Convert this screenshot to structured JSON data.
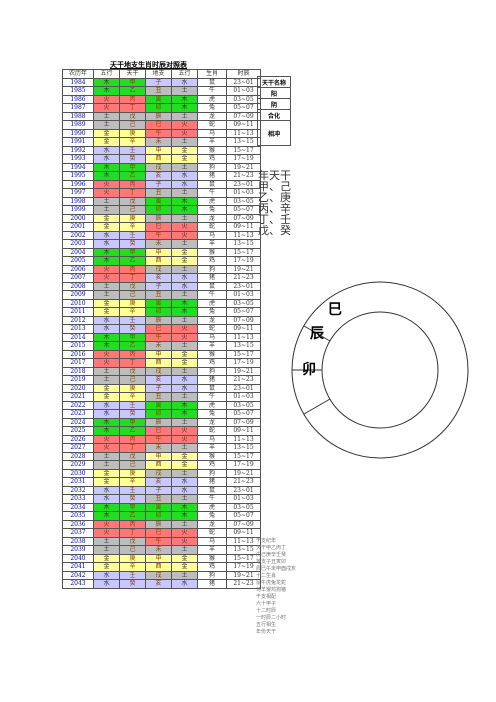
{
  "title": "天干地支生肖时辰对照表",
  "table": {
    "header": [
      "农历年",
      "五行",
      "天干",
      "地支",
      "五行",
      "生肖",
      "时辰"
    ],
    "rows": [
      [
        "1984",
        "木",
        "甲",
        "子",
        "水",
        "鼠",
        "23~01"
      ],
      [
        "1985",
        "木",
        "乙",
        "丑",
        "土",
        "牛",
        "01~03"
      ],
      [
        "1986",
        "火",
        "丙",
        "寅",
        "木",
        "虎",
        "03~05"
      ],
      [
        "1987",
        "火",
        "丁",
        "卯",
        "木",
        "兔",
        "05~07"
      ],
      [
        "1988",
        "土",
        "戊",
        "辰",
        "土",
        "龙",
        "07~09"
      ],
      [
        "1989",
        "土",
        "己",
        "巳",
        "火",
        "蛇",
        "09~11"
      ],
      [
        "1990",
        "金",
        "庚",
        "午",
        "火",
        "马",
        "11~13"
      ],
      [
        "1991",
        "金",
        "辛",
        "未",
        "土",
        "羊",
        "13~15"
      ],
      [
        "1992",
        "水",
        "壬",
        "申",
        "金",
        "猴",
        "15~17"
      ],
      [
        "1993",
        "水",
        "癸",
        "酉",
        "金",
        "鸡",
        "17~19"
      ],
      [
        "1994",
        "木",
        "甲",
        "戌",
        "土",
        "狗",
        "19~21"
      ],
      [
        "1995",
        "木",
        "乙",
        "亥",
        "水",
        "猪",
        "21~23"
      ],
      [
        "1996",
        "火",
        "丙",
        "子",
        "水",
        "鼠",
        "23~01"
      ],
      [
        "1997",
        "火",
        "丁",
        "丑",
        "土",
        "牛",
        "01~03"
      ],
      [
        "1998",
        "土",
        "戊",
        "寅",
        "木",
        "虎",
        "03~05"
      ],
      [
        "1999",
        "土",
        "己",
        "卯",
        "木",
        "兔",
        "05~07"
      ],
      [
        "2000",
        "金",
        "庚",
        "辰",
        "土",
        "龙",
        "07~09"
      ],
      [
        "2001",
        "金",
        "辛",
        "巳",
        "火",
        "蛇",
        "09~11"
      ],
      [
        "2002",
        "水",
        "壬",
        "午",
        "火",
        "马",
        "11~13"
      ],
      [
        "2003",
        "水",
        "癸",
        "未",
        "土",
        "羊",
        "13~15"
      ],
      [
        "2004",
        "木",
        "甲",
        "申",
        "金",
        "猴",
        "15~17"
      ],
      [
        "2005",
        "木",
        "乙",
        "酉",
        "金",
        "鸡",
        "17~19"
      ],
      [
        "2006",
        "火",
        "丙",
        "戌",
        "土",
        "狗",
        "19~21"
      ],
      [
        "2007",
        "火",
        "丁",
        "亥",
        "水",
        "猪",
        "21~23"
      ],
      [
        "2008",
        "土",
        "戊",
        "子",
        "水",
        "鼠",
        "23~01"
      ],
      [
        "2009",
        "土",
        "己",
        "丑",
        "土",
        "牛",
        "01~03"
      ],
      [
        "2010",
        "金",
        "庚",
        "寅",
        "木",
        "虎",
        "03~05"
      ],
      [
        "2011",
        "金",
        "辛",
        "卯",
        "木",
        "兔",
        "05~07"
      ],
      [
        "2012",
        "水",
        "壬",
        "辰",
        "土",
        "龙",
        "07~09"
      ],
      [
        "2013",
        "水",
        "癸",
        "巳",
        "火",
        "蛇",
        "09~11"
      ],
      [
        "2014",
        "木",
        "甲",
        "午",
        "火",
        "马",
        "11~13"
      ],
      [
        "2015",
        "木",
        "乙",
        "未",
        "土",
        "羊",
        "13~15"
      ],
      [
        "2016",
        "火",
        "丙",
        "申",
        "金",
        "猴",
        "15~17"
      ],
      [
        "2017",
        "火",
        "丁",
        "酉",
        "金",
        "鸡",
        "17~19"
      ],
      [
        "2018",
        "土",
        "戊",
        "戌",
        "土",
        "狗",
        "19~21"
      ],
      [
        "2019",
        "土",
        "己",
        "亥",
        "水",
        "猪",
        "21~23"
      ],
      [
        "2020",
        "金",
        "庚",
        "子",
        "水",
        "鼠",
        "23~01"
      ],
      [
        "2021",
        "金",
        "辛",
        "丑",
        "土",
        "牛",
        "01~03"
      ],
      [
        "2022",
        "水",
        "壬",
        "寅",
        "木",
        "虎",
        "03~05"
      ],
      [
        "2023",
        "水",
        "癸",
        "卯",
        "木",
        "兔",
        "05~07"
      ],
      [
        "2024",
        "木",
        "甲",
        "辰",
        "土",
        "龙",
        "07~09"
      ],
      [
        "2025",
        "木",
        "乙",
        "巳",
        "火",
        "蛇",
        "09~11"
      ],
      [
        "2026",
        "火",
        "丙",
        "午",
        "火",
        "马",
        "11~13"
      ],
      [
        "2027",
        "火",
        "丁",
        "未",
        "土",
        "羊",
        "13~15"
      ],
      [
        "2028",
        "土",
        "戊",
        "申",
        "金",
        "猴",
        "15~17"
      ],
      [
        "2029",
        "土",
        "己",
        "酉",
        "金",
        "鸡",
        "17~19"
      ],
      [
        "2030",
        "金",
        "庚",
        "戌",
        "土",
        "狗",
        "19~21"
      ],
      [
        "2031",
        "金",
        "辛",
        "亥",
        "水",
        "猪",
        "21~23"
      ],
      [
        "2032",
        "水",
        "壬",
        "子",
        "水",
        "鼠",
        "23~01"
      ],
      [
        "2033",
        "水",
        "癸",
        "丑",
        "土",
        "牛",
        "01~03"
      ],
      [
        "2034",
        "木",
        "甲",
        "寅",
        "木",
        "虎",
        "03~05"
      ],
      [
        "2035",
        "木",
        "乙",
        "卯",
        "木",
        "兔",
        "05~07"
      ],
      [
        "2036",
        "火",
        "丙",
        "辰",
        "土",
        "龙",
        "07~09"
      ],
      [
        "2037",
        "火",
        "丁",
        "巳",
        "火",
        "蛇",
        "09~11"
      ],
      [
        "2038",
        "土",
        "戊",
        "午",
        "火",
        "马",
        "11~13"
      ],
      [
        "2039",
        "土",
        "己",
        "未",
        "土",
        "羊",
        "13~15"
      ],
      [
        "2040",
        "金",
        "庚",
        "申",
        "金",
        "猴",
        "15~17"
      ],
      [
        "2041",
        "金",
        "辛",
        "酉",
        "金",
        "鸡",
        "17~19"
      ],
      [
        "2042",
        "水",
        "壬",
        "戌",
        "土",
        "狗",
        "19~21"
      ],
      [
        "2043",
        "水",
        "癸",
        "亥",
        "水",
        "猪",
        "21~23"
      ]
    ]
  },
  "element_colors": {
    "木": "#22dd22",
    "火": "#ff7777",
    "土": "#bdbdbd",
    "金": "#ffff99",
    "水": "#c8c8ff"
  },
  "side_table": [
    "天干名称",
    "阳",
    "阴",
    "合化",
    "相冲"
  ],
  "side_text": [
    "年天干",
    "甲、己",
    "乙、庚",
    "丙、辛",
    "丁、壬",
    "戊、癸"
  ],
  "wheel": [
    "卯",
    "辰",
    "巳"
  ],
  "notes": [
    "干支纪年",
    "天干甲乙丙丁",
    "戊己庚辛壬癸",
    "地支子丑寅卯",
    "辰巳午未申酉戌亥",
    "十二生肖",
    "鼠牛虎兔龙蛇",
    "马羊猴鸡狗猪",
    "干支相配",
    "六十甲子",
    "十二时辰",
    "一时辰二小时",
    "五行相生",
    "年份天干"
  ]
}
